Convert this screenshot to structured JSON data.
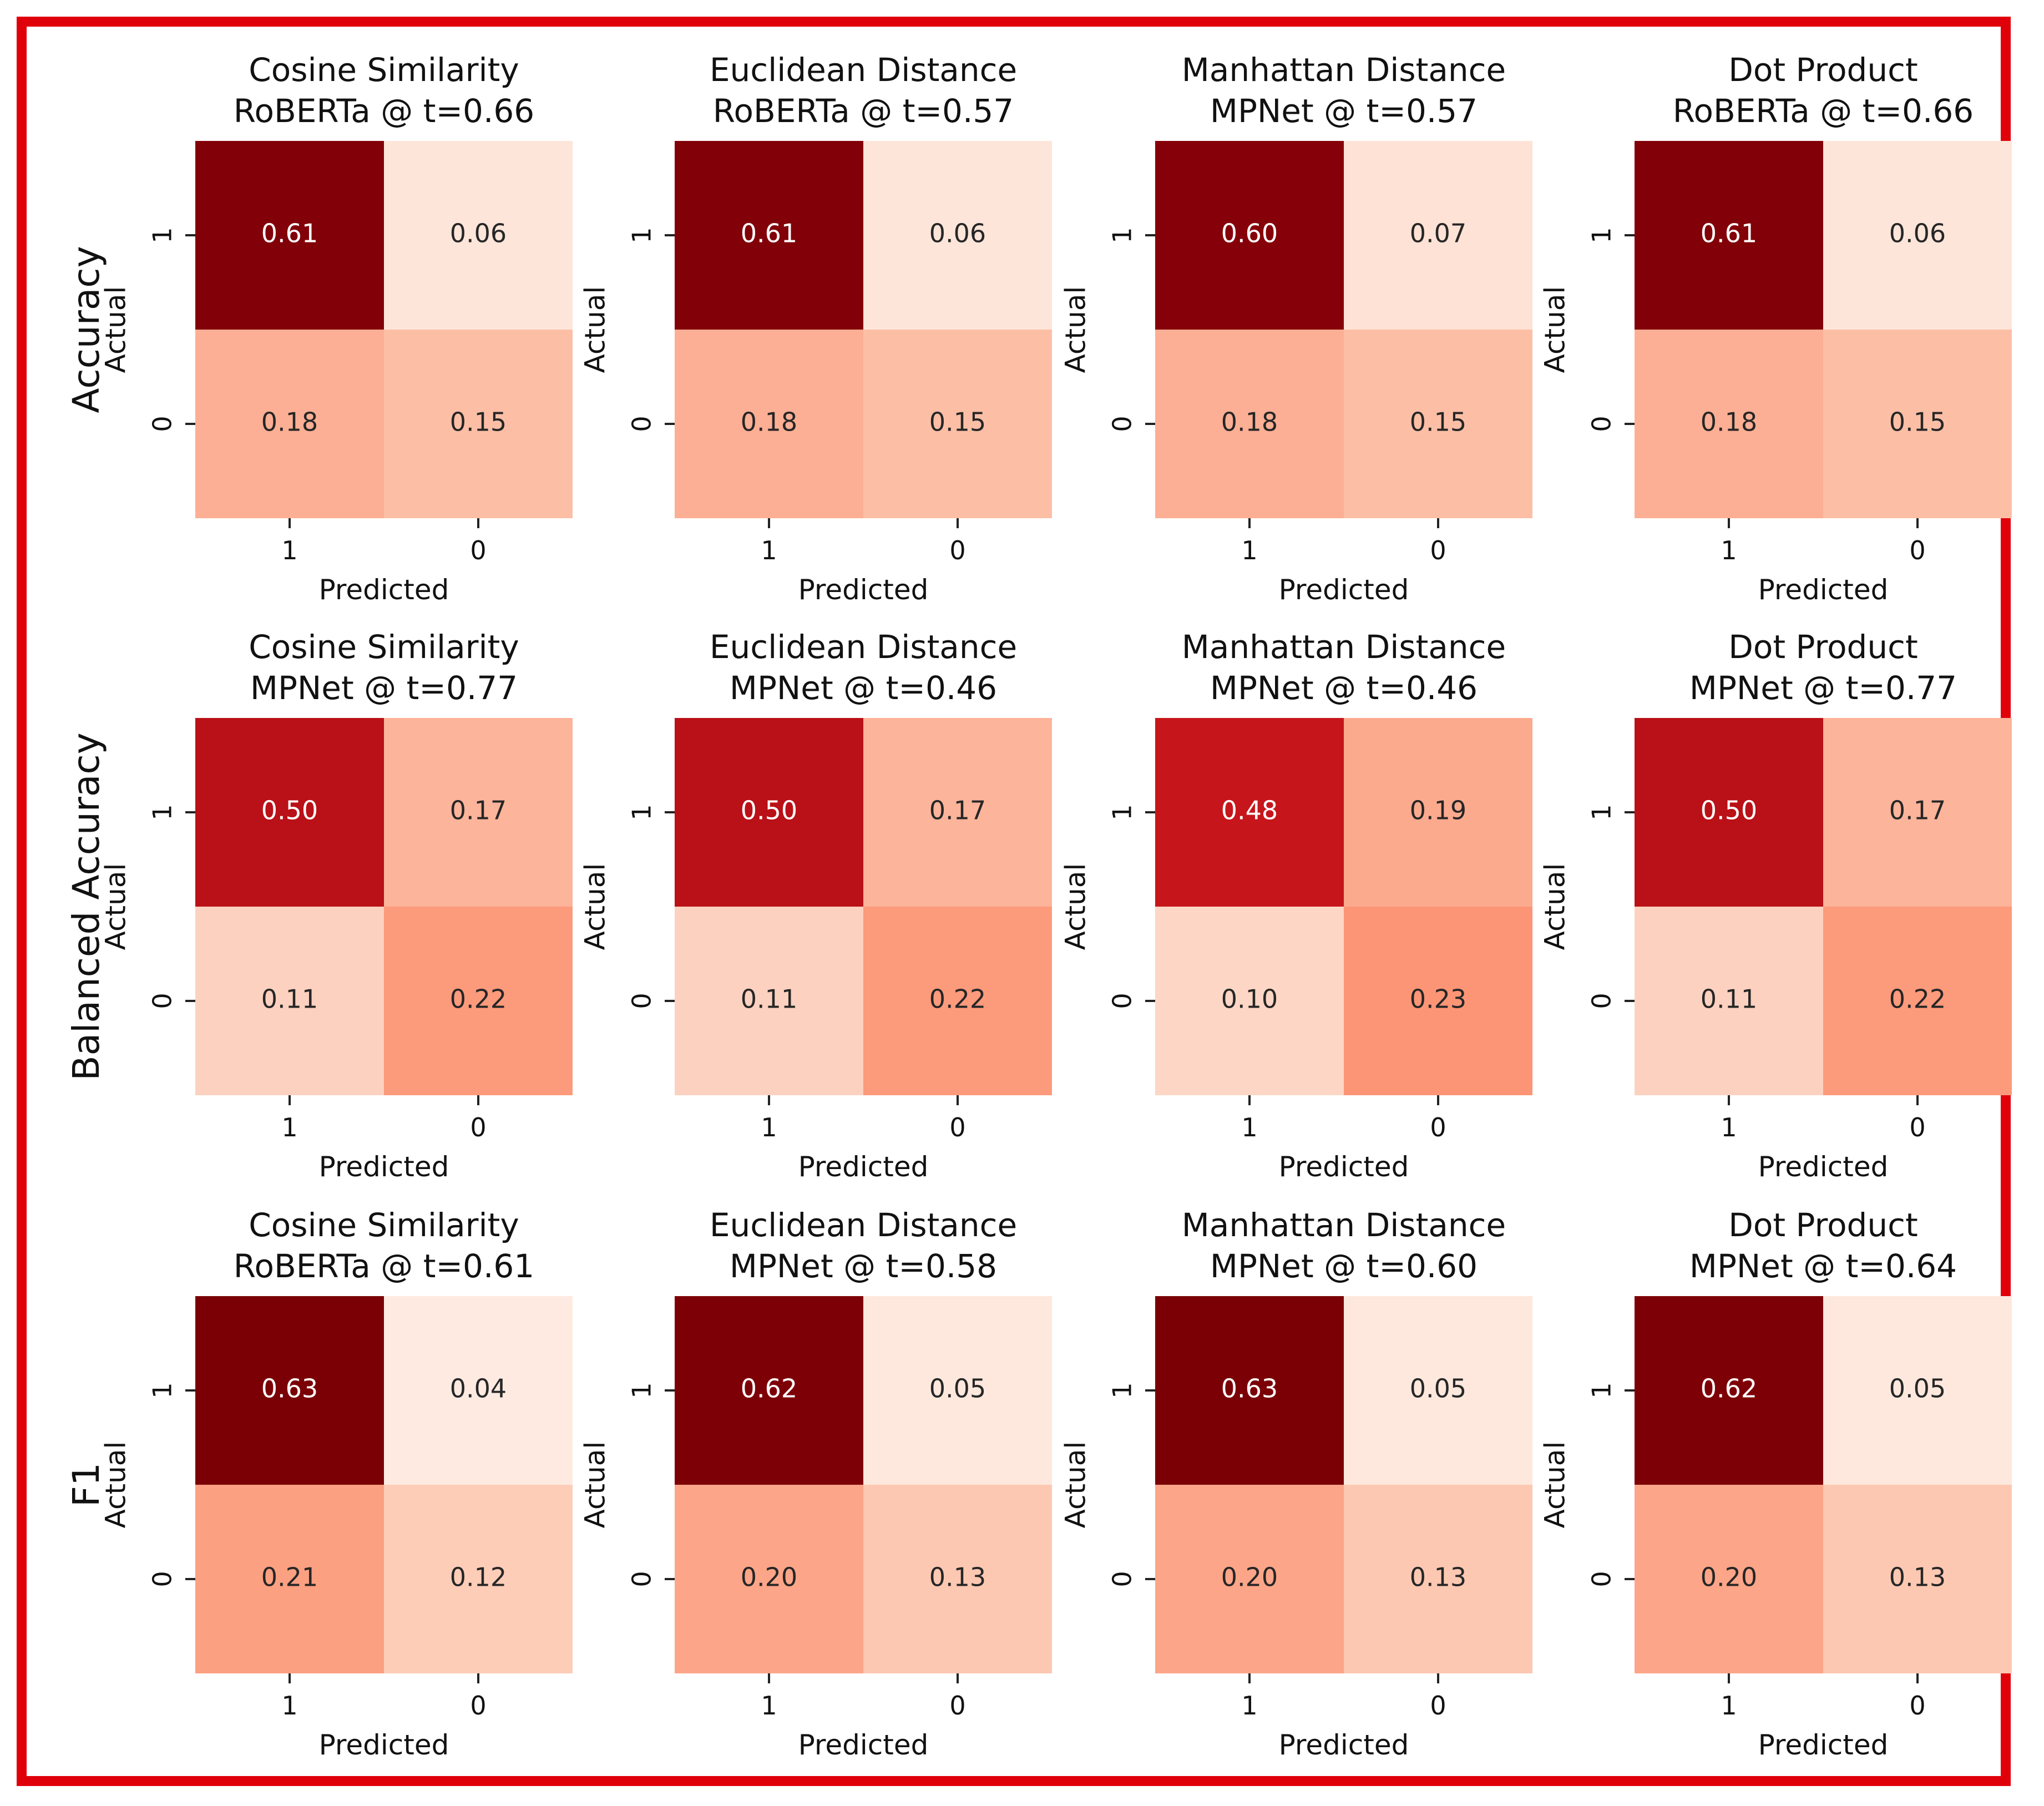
{
  "figure": {
    "frame_color": "#e0000a",
    "colormap": [
      "#fff5f0",
      "#fee0d2",
      "#fcbba1",
      "#fc9272",
      "#fb6a4a",
      "#ef3b2c",
      "#cb181d",
      "#99000d",
      "#7a0006"
    ]
  },
  "chart_data": {
    "type": "heatmap",
    "row_labels": [
      "Accuracy",
      "Balanced Accuracy",
      "F1"
    ],
    "axis_labels": {
      "x": "Predicted",
      "y": "Actual"
    },
    "tick_labels": {
      "x": [
        "1",
        "0"
      ],
      "y": [
        "1",
        "0"
      ]
    },
    "value_range": [
      0.0,
      0.63
    ],
    "matrices": [
      {
        "title_line1": "Cosine Similarity",
        "title_line2": "RoBERTa @ t=0.66",
        "values": [
          [
            0.61,
            0.06
          ],
          [
            0.18,
            0.15
          ]
        ],
        "labels": [
          [
            "0.61",
            "0.06"
          ],
          [
            "0.18",
            "0.15"
          ]
        ]
      },
      {
        "title_line1": "Euclidean Distance",
        "title_line2": "RoBERTa @ t=0.57",
        "values": [
          [
            0.61,
            0.06
          ],
          [
            0.18,
            0.15
          ]
        ],
        "labels": [
          [
            "0.61",
            "0.06"
          ],
          [
            "0.18",
            "0.15"
          ]
        ]
      },
      {
        "title_line1": "Manhattan Distance",
        "title_line2": "MPNet @ t=0.57",
        "values": [
          [
            0.6,
            0.07
          ],
          [
            0.18,
            0.15
          ]
        ],
        "labels": [
          [
            "0.60",
            "0.07"
          ],
          [
            "0.18",
            "0.15"
          ]
        ]
      },
      {
        "title_line1": "Dot Product",
        "title_line2": "RoBERTa @ t=0.66",
        "values": [
          [
            0.61,
            0.06
          ],
          [
            0.18,
            0.15
          ]
        ],
        "labels": [
          [
            "0.61",
            "0.06"
          ],
          [
            "0.18",
            "0.15"
          ]
        ]
      },
      {
        "title_line1": "Cosine Similarity",
        "title_line2": "MPNet @ t=0.77",
        "values": [
          [
            0.5,
            0.17
          ],
          [
            0.11,
            0.22
          ]
        ],
        "labels": [
          [
            "0.50",
            "0.17"
          ],
          [
            "0.11",
            "0.22"
          ]
        ]
      },
      {
        "title_line1": "Euclidean Distance",
        "title_line2": "MPNet @ t=0.46",
        "values": [
          [
            0.5,
            0.17
          ],
          [
            0.11,
            0.22
          ]
        ],
        "labels": [
          [
            "0.50",
            "0.17"
          ],
          [
            "0.11",
            "0.22"
          ]
        ]
      },
      {
        "title_line1": "Manhattan Distance",
        "title_line2": "MPNet @ t=0.46",
        "values": [
          [
            0.48,
            0.19
          ],
          [
            0.1,
            0.23
          ]
        ],
        "labels": [
          [
            "0.48",
            "0.19"
          ],
          [
            "0.10",
            "0.23"
          ]
        ]
      },
      {
        "title_line1": "Dot Product",
        "title_line2": "MPNet @ t=0.77",
        "values": [
          [
            0.5,
            0.17
          ],
          [
            0.11,
            0.22
          ]
        ],
        "labels": [
          [
            "0.50",
            "0.17"
          ],
          [
            "0.11",
            "0.22"
          ]
        ]
      },
      {
        "title_line1": "Cosine Similarity",
        "title_line2": "RoBERTa @ t=0.61",
        "values": [
          [
            0.63,
            0.04
          ],
          [
            0.21,
            0.12
          ]
        ],
        "labels": [
          [
            "0.63",
            "0.04"
          ],
          [
            "0.21",
            "0.12"
          ]
        ]
      },
      {
        "title_line1": "Euclidean Distance",
        "title_line2": "MPNet @ t=0.58",
        "values": [
          [
            0.62,
            0.05
          ],
          [
            0.2,
            0.13
          ]
        ],
        "labels": [
          [
            "0.62",
            "0.05"
          ],
          [
            "0.20",
            "0.13"
          ]
        ]
      },
      {
        "title_line1": "Manhattan Distance",
        "title_line2": "MPNet @ t=0.60",
        "values": [
          [
            0.63,
            0.05
          ],
          [
            0.2,
            0.13
          ]
        ],
        "labels": [
          [
            "0.63",
            "0.05"
          ],
          [
            "0.20",
            "0.13"
          ]
        ]
      },
      {
        "title_line1": "Dot Product",
        "title_line2": "MPNet @ t=0.64",
        "values": [
          [
            0.62,
            0.05
          ],
          [
            0.2,
            0.13
          ]
        ],
        "labels": [
          [
            "0.62",
            "0.05"
          ],
          [
            "0.20",
            "0.13"
          ]
        ]
      }
    ]
  }
}
